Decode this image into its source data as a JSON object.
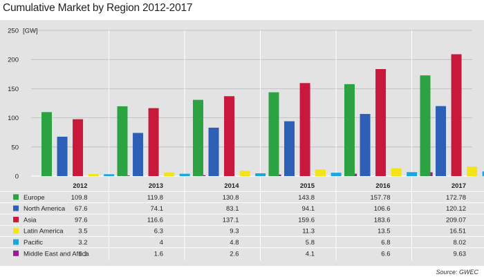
{
  "title": "Cumulative Market by Region 2012-2017",
  "source": "Source: GWEC",
  "colors": {
    "panel": "#e3e3e4",
    "grid": "#b9b9bb",
    "row_line": "#ffffff"
  },
  "chart_data": {
    "type": "bar",
    "title": "Cumulative Market by Region 2012-2017",
    "unit": "[GW]",
    "xlabel": "",
    "ylabel": "",
    "ylim": [
      0,
      250
    ],
    "yticks": [
      0,
      50,
      100,
      150,
      200,
      250
    ],
    "grid": true,
    "legend_placement": "table-left",
    "categories": [
      "2012",
      "2013",
      "2014",
      "2015",
      "2016",
      "2017"
    ],
    "series": [
      {
        "name": "Europe",
        "color": "#2ca242",
        "values": [
          109.8,
          119.8,
          130.8,
          143.8,
          157.78,
          172.78
        ],
        "labels": [
          "109.8",
          "119.8",
          "130.8",
          "143.8",
          "157.78",
          "172.78"
        ]
      },
      {
        "name": "North America",
        "color": "#2e5fb7",
        "values": [
          67.6,
          74.1,
          83.1,
          94.1,
          106.6,
          120.12
        ],
        "labels": [
          "67.6",
          "74.1",
          "83.1",
          "94.1",
          "106.6",
          "120.12"
        ]
      },
      {
        "name": "Asia",
        "color": "#c8193c",
        "values": [
          97.6,
          116.6,
          137.1,
          159.6,
          183.6,
          209.07
        ],
        "labels": [
          "97.6",
          "116.6",
          "137.1",
          "159.6",
          "183.6",
          "209.07"
        ]
      },
      {
        "name": "Latin America",
        "color": "#f2e418",
        "values": [
          3.5,
          6.3,
          9.3,
          11.3,
          13.5,
          16.51
        ],
        "labels": [
          "3.5",
          "6.3",
          "9.3",
          "11.3",
          "13.5",
          "16.51"
        ]
      },
      {
        "name": "Pacific",
        "color": "#1ba6e0",
        "values": [
          3.2,
          4,
          4.8,
          5.8,
          6.8,
          8.02
        ],
        "labels": [
          "3.2",
          "4",
          "4.8",
          "5.8",
          "6.8",
          "8.02"
        ]
      },
      {
        "name": "Middle East and Africa",
        "color": "#9b1e8e",
        "values": [
          1.1,
          1.6,
          2.6,
          4.1,
          6.6,
          9.63
        ],
        "labels": [
          "1.1",
          "1.6",
          "2.6",
          "4.1",
          "6.6",
          "9.63"
        ]
      }
    ]
  }
}
